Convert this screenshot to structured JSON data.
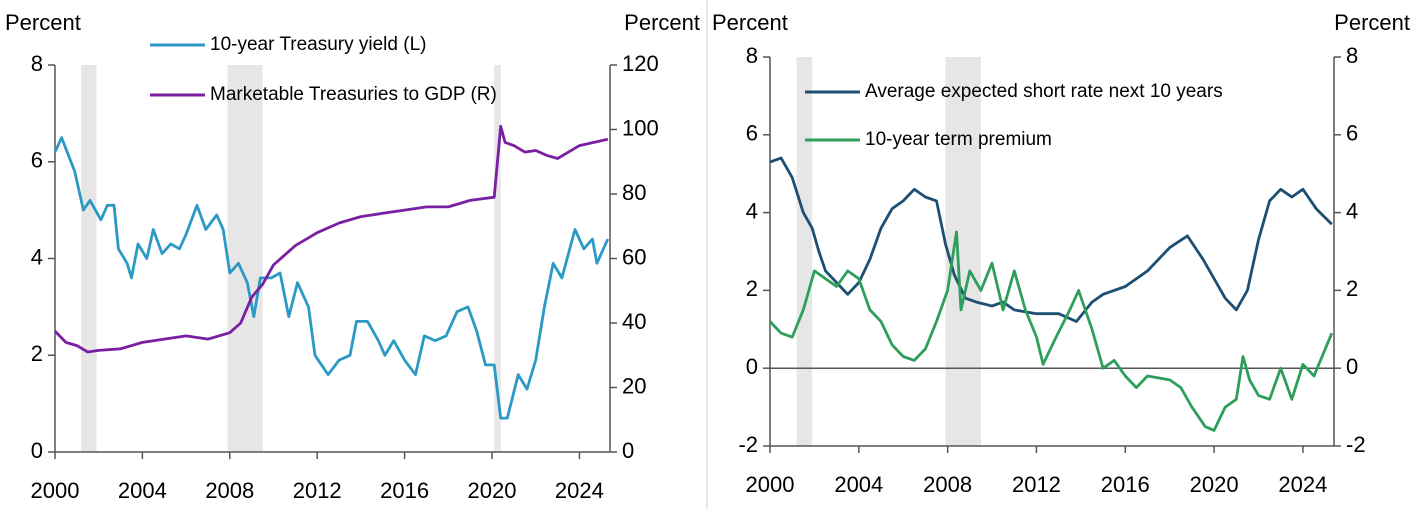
{
  "chart_data": [
    {
      "type": "line",
      "y_label": "Percent",
      "y2_label": "Percent",
      "xlim": [
        2000,
        2025.4
      ],
      "xticks": [
        2000,
        2004,
        2008,
        2012,
        2016,
        2020,
        2024
      ],
      "ylim": [
        0,
        8
      ],
      "yticks": [
        0,
        2,
        4,
        6,
        8
      ],
      "y2lim": [
        0,
        120
      ],
      "y2ticks": [
        0,
        20,
        40,
        60,
        80,
        100,
        120
      ],
      "shaded": [
        [
          2001.2,
          2001.9
        ],
        [
          2007.9,
          2009.5
        ],
        [
          2020.1,
          2020.4
        ]
      ],
      "series": [
        {
          "name": "10-year Treasury yield (L)",
          "color": "#2a9ac4",
          "axis": "y",
          "x": [
            2000,
            2000.3,
            2000.9,
            2001.3,
            2001.6,
            2002.1,
            2002.4,
            2002.7,
            2002.9,
            2003.3,
            2003.5,
            2003.8,
            2004.2,
            2004.5,
            2004.9,
            2005.3,
            2005.7,
            2006,
            2006.5,
            2006.9,
            2007.4,
            2007.7,
            2008,
            2008.4,
            2008.8,
            2009.1,
            2009.4,
            2009.9,
            2010.3,
            2010.7,
            2011.1,
            2011.6,
            2011.9,
            2012.5,
            2013,
            2013.5,
            2013.8,
            2014.3,
            2014.8,
            2015.1,
            2015.5,
            2016,
            2016.5,
            2016.9,
            2017.4,
            2017.9,
            2018.4,
            2018.9,
            2019.3,
            2019.7,
            2020.1,
            2020.4,
            2020.7,
            2021.2,
            2021.6,
            2022,
            2022.4,
            2022.8,
            2023.2,
            2023.8,
            2024.2,
            2024.6,
            2024.8,
            2025.3
          ],
          "values": [
            6.2,
            6.5,
            5.8,
            5.0,
            5.2,
            4.8,
            5.1,
            5.1,
            4.2,
            3.9,
            3.6,
            4.3,
            4.0,
            4.6,
            4.1,
            4.3,
            4.2,
            4.5,
            5.1,
            4.6,
            4.9,
            4.6,
            3.7,
            3.9,
            3.5,
            2.8,
            3.6,
            3.6,
            3.7,
            2.8,
            3.5,
            3.0,
            2.0,
            1.6,
            1.9,
            2.0,
            2.7,
            2.7,
            2.3,
            2.0,
            2.3,
            1.9,
            1.6,
            2.4,
            2.3,
            2.4,
            2.9,
            3.0,
            2.5,
            1.8,
            1.8,
            0.7,
            0.7,
            1.6,
            1.3,
            1.9,
            3.0,
            3.9,
            3.6,
            4.6,
            4.2,
            4.4,
            3.9,
            4.4
          ]
        },
        {
          "name": "Marketable Treasuries to GDP (R)",
          "color": "#7a1fa2",
          "axis": "y2",
          "x": [
            2000,
            2000.5,
            2001,
            2001.5,
            2002,
            2003,
            2004,
            2005,
            2006,
            2007,
            2008,
            2008.5,
            2009,
            2009.5,
            2010,
            2011,
            2012,
            2013,
            2014,
            2015,
            2016,
            2017,
            2018,
            2019,
            2020.1,
            2020.4,
            2020.6,
            2021,
            2021.5,
            2022,
            2022.5,
            2023,
            2023.5,
            2024,
            2025.3
          ],
          "values": [
            37.5,
            34,
            33,
            31,
            31.5,
            32,
            34,
            35,
            36,
            35,
            37,
            40,
            48,
            52,
            58,
            64,
            68,
            71,
            73,
            74,
            75,
            76,
            76,
            78,
            79,
            101,
            96,
            95,
            93,
            93.5,
            92,
            91,
            93,
            95,
            97
          ]
        }
      ]
    },
    {
      "type": "line",
      "y_label": "Percent",
      "y2_label": "Percent",
      "xlim": [
        2000,
        2025.4
      ],
      "xticks": [
        2000,
        2004,
        2008,
        2012,
        2016,
        2020,
        2024
      ],
      "ylim": [
        -2,
        8
      ],
      "yticks": [
        -2,
        0,
        2,
        4,
        6,
        8
      ],
      "y2lim": [
        -2,
        8
      ],
      "y2ticks": [
        -2,
        0,
        2,
        4,
        6,
        8
      ],
      "shaded": [
        [
          2001.2,
          2001.9
        ],
        [
          2007.9,
          2009.5
        ]
      ],
      "series": [
        {
          "name": "Average expected short rate next 10 years",
          "color": "#1d4f73",
          "axis": "y",
          "x": [
            2000,
            2000.5,
            2001,
            2001.5,
            2001.9,
            2002.2,
            2002.5,
            2003,
            2003.5,
            2004,
            2004.5,
            2005,
            2005.5,
            2006,
            2006.5,
            2007,
            2007.5,
            2007.9,
            2008.3,
            2008.8,
            2009.3,
            2010,
            2010.5,
            2011,
            2012,
            2013,
            2013.8,
            2014.5,
            2015,
            2016,
            2017,
            2018,
            2018.8,
            2019.5,
            2020,
            2020.5,
            2021,
            2021.5,
            2022,
            2022.5,
            2023,
            2023.5,
            2024,
            2024.6,
            2025.3
          ],
          "values": [
            5.3,
            5.4,
            4.9,
            4.0,
            3.6,
            3.0,
            2.5,
            2.2,
            1.9,
            2.2,
            2.8,
            3.6,
            4.1,
            4.3,
            4.6,
            4.4,
            4.3,
            3.2,
            2.4,
            1.8,
            1.7,
            1.6,
            1.7,
            1.5,
            1.4,
            1.4,
            1.2,
            1.7,
            1.9,
            2.1,
            2.5,
            3.1,
            3.4,
            2.8,
            2.3,
            1.8,
            1.5,
            2.0,
            3.3,
            4.3,
            4.6,
            4.4,
            4.6,
            4.1,
            3.7
          ]
        },
        {
          "name": "10-year term premium",
          "color": "#2e9e5b",
          "axis": "y",
          "x": [
            2000,
            2000.5,
            2001,
            2001.5,
            2002,
            2002.5,
            2003,
            2003.5,
            2004,
            2004.5,
            2005,
            2005.5,
            2006,
            2006.5,
            2007,
            2007.5,
            2008,
            2008.4,
            2008.6,
            2009,
            2009.5,
            2010,
            2010.5,
            2011,
            2011.5,
            2012,
            2012.3,
            2012.8,
            2013.5,
            2013.9,
            2014.5,
            2015,
            2015.5,
            2016,
            2016.5,
            2017,
            2018,
            2018.5,
            2019,
            2019.6,
            2020,
            2020.5,
            2021,
            2021.3,
            2021.6,
            2022,
            2022.5,
            2023,
            2023.5,
            2024,
            2024.5,
            2025.3
          ],
          "values": [
            1.2,
            0.9,
            0.8,
            1.5,
            2.5,
            2.3,
            2.1,
            2.5,
            2.3,
            1.5,
            1.2,
            0.6,
            0.3,
            0.2,
            0.5,
            1.2,
            2.0,
            3.5,
            1.5,
            2.5,
            2.0,
            2.7,
            1.5,
            2.5,
            1.5,
            0.8,
            0.1,
            0.7,
            1.5,
            2.0,
            1.0,
            0.0,
            0.2,
            -0.2,
            -0.5,
            -0.2,
            -0.3,
            -0.5,
            -1.0,
            -1.5,
            -1.6,
            -1.0,
            -0.8,
            0.3,
            -0.3,
            -0.7,
            -0.8,
            0.0,
            -0.8,
            0.1,
            -0.2,
            0.9
          ]
        }
      ]
    }
  ]
}
